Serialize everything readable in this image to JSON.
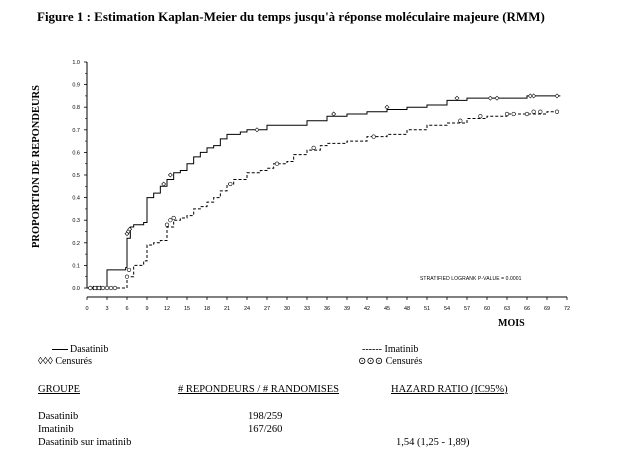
{
  "figure": {
    "title": "Figure 1 : Estimation Kaplan-Meier du temps jusqu'à réponse moléculaire majeure (RMM)"
  },
  "chart_data": {
    "type": "line",
    "ylabel": "PROPORTION DE REPONDEURS",
    "xlabel": "MOIS",
    "xlim": [
      0,
      72
    ],
    "ylim": [
      0,
      1.0
    ],
    "x_ticks": [
      "0",
      "3",
      "6",
      "9",
      "12",
      "15",
      "18",
      "21",
      "24",
      "27",
      "30",
      "33",
      "36",
      "39",
      "42",
      "45",
      "48",
      "51",
      "54",
      "57",
      "60",
      "63",
      "66",
      "69",
      "72"
    ],
    "y_ticks": [
      "0.0",
      "0.1",
      "0.2",
      "0.3",
      "0.4",
      "0.5",
      "0.6",
      "0.7",
      "0.8",
      "0.9",
      "1.0"
    ],
    "annotation": "STRATIFIED LOGRANK P-VALUE = 0.0001",
    "series": [
      {
        "name": "Dasatinib",
        "style": "solid",
        "censor_marker": "diamond",
        "x": [
          0,
          2.8,
          3,
          5.8,
          6,
          6.5,
          7,
          8.5,
          9,
          10,
          11,
          12,
          13,
          14,
          15,
          16,
          17,
          18,
          19,
          20,
          21,
          23,
          24,
          27,
          30,
          33,
          36,
          39,
          42,
          45,
          48,
          51,
          54,
          57,
          60,
          63,
          66,
          69,
          71
        ],
        "y": [
          0,
          0,
          0.08,
          0.09,
          0.22,
          0.27,
          0.28,
          0.29,
          0.4,
          0.42,
          0.45,
          0.48,
          0.51,
          0.52,
          0.55,
          0.58,
          0.6,
          0.62,
          0.63,
          0.66,
          0.68,
          0.69,
          0.7,
          0.72,
          0.72,
          0.74,
          0.76,
          0.77,
          0.78,
          0.79,
          0.8,
          0.81,
          0.83,
          0.84,
          0.84,
          0.84,
          0.85,
          0.85,
          0.85
        ]
      },
      {
        "name": "Imatinib",
        "style": "dashed",
        "censor_marker": "circle",
        "x": [
          0,
          5.5,
          6,
          7,
          8.5,
          9,
          10,
          11,
          12,
          13,
          14,
          15,
          16,
          17,
          18,
          19,
          20,
          21,
          22,
          24,
          26,
          27,
          28,
          30,
          31,
          33,
          35,
          36,
          39,
          42,
          45,
          48,
          51,
          54,
          57,
          60,
          63,
          66,
          69,
          71
        ],
        "y": [
          0,
          0,
          0.05,
          0.1,
          0.12,
          0.19,
          0.2,
          0.21,
          0.27,
          0.3,
          0.31,
          0.32,
          0.35,
          0.36,
          0.38,
          0.4,
          0.43,
          0.46,
          0.48,
          0.51,
          0.52,
          0.53,
          0.55,
          0.56,
          0.59,
          0.61,
          0.63,
          0.64,
          0.65,
          0.67,
          0.68,
          0.7,
          0.72,
          0.73,
          0.75,
          0.76,
          0.77,
          0.77,
          0.78,
          0.78
        ]
      }
    ],
    "censor_points": {
      "Dasatinib": [
        [
          0.5,
          0
        ],
        [
          1,
          0
        ],
        [
          1.5,
          0
        ],
        [
          2,
          0
        ],
        [
          6,
          0.24
        ],
        [
          6.2,
          0.25
        ],
        [
          6.4,
          0.26
        ],
        [
          11.5,
          0.46
        ],
        [
          12.5,
          0.5
        ],
        [
          25.5,
          0.7
        ],
        [
          37,
          0.77
        ],
        [
          45,
          0.8
        ],
        [
          55.5,
          0.84
        ],
        [
          60.5,
          0.84
        ],
        [
          61.5,
          0.84
        ],
        [
          66.5,
          0.85
        ],
        [
          67,
          0.85
        ],
        [
          70.5,
          0.85
        ]
      ],
      "Imatinib": [
        [
          0.5,
          0
        ],
        [
          1.2,
          0
        ],
        [
          1.8,
          0
        ],
        [
          2.4,
          0
        ],
        [
          3,
          0
        ],
        [
          3.6,
          0
        ],
        [
          4.2,
          0
        ],
        [
          6,
          0.05
        ],
        [
          6.3,
          0.08
        ],
        [
          12,
          0.28
        ],
        [
          12.5,
          0.3
        ],
        [
          13,
          0.31
        ],
        [
          21.5,
          0.46
        ],
        [
          28.5,
          0.55
        ],
        [
          34,
          0.62
        ],
        [
          43,
          0.67
        ],
        [
          56,
          0.74
        ],
        [
          59,
          0.76
        ],
        [
          63,
          0.77
        ],
        [
          64,
          0.77
        ],
        [
          66,
          0.77
        ],
        [
          67,
          0.78
        ],
        [
          68,
          0.78
        ],
        [
          70.5,
          0.78
        ]
      ]
    }
  },
  "legend": {
    "dasatinib": "Dasatinib",
    "imatinib_line": "------",
    "imatinib": "Imatinib",
    "dasatinib_censored_symbols": "◊◊◊",
    "imatinib_censored_symbols": "⊙⊙⊙",
    "censored": "Censurés"
  },
  "table": {
    "headers": [
      "GROUPE",
      "# REPONDEURS / # RANDOMISES",
      "HAZARD RATIO (IC95%)"
    ],
    "rows": [
      {
        "group": "Dasatinib",
        "responders": "198/259",
        "hr": ""
      },
      {
        "group": "Imatinib",
        "responders": "167/260",
        "hr": ""
      },
      {
        "group": "Dasatinib sur imatinib",
        "responders": "",
        "hr": "1,54 (1,25 - 1,89)"
      }
    ]
  }
}
